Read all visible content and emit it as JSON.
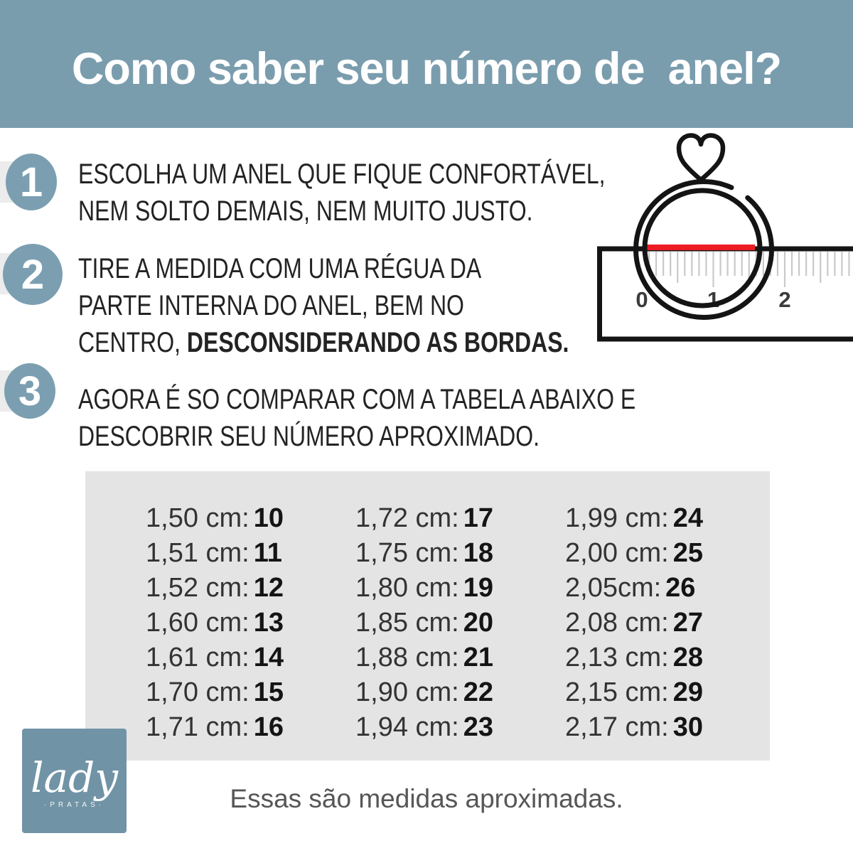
{
  "header": {
    "title": "Como saber seu número de  anel?"
  },
  "steps": [
    {
      "number": "1",
      "line1": "ESCOLHA UM ANEL QUE FIQUE CONFORTÁVEL,",
      "line2": "NEM SOLTO DEMAIS, NEM MUITO JUSTO."
    },
    {
      "number": "2",
      "line1": "TIRE A MEDIDA COM UMA RÉGUA DA",
      "line2": "PARTE INTERNA DO ANEL, BEM NO",
      "line3_regular": "CENTRO, ",
      "line3_bold": "DESCONSIDERANDO AS BORDAS."
    },
    {
      "number": "3",
      "line1": "AGORA É SO COMPARAR COM A TABELA ABAIXO E",
      "line2": "DESCOBRIR SEU NÚMERO APROXIMADO."
    }
  ],
  "ring_diagram": {
    "ruler_labels": [
      "0",
      "1",
      "2"
    ],
    "red_line_color": "#ed1c24",
    "outline_color": "#141414",
    "tick_color": "#c9c9c9"
  },
  "size_table": {
    "columns": [
      [
        {
          "label": "1,50 cm:",
          "size": "10"
        },
        {
          "label": "1,51 cm:",
          "size": "11"
        },
        {
          "label": "1,52 cm:",
          "size": "12"
        },
        {
          "label": "1,60 cm:",
          "size": "13"
        },
        {
          "label": "1,61 cm:",
          "size": "14"
        },
        {
          "label": "1,70 cm:",
          "size": "15"
        },
        {
          "label": "1,71 cm:",
          "size": "16"
        }
      ],
      [
        {
          "label": "1,72 cm:",
          "size": "17"
        },
        {
          "label": "1,75 cm:",
          "size": "18"
        },
        {
          "label": "1,80 cm:",
          "size": "19"
        },
        {
          "label": "1,85 cm:",
          "size": "20"
        },
        {
          "label": "1,88 cm:",
          "size": "21"
        },
        {
          "label": "1,90 cm:",
          "size": "22"
        },
        {
          "label": "1,94 cm:",
          "size": "23"
        }
      ],
      [
        {
          "label": "1,99 cm:",
          "size": "24"
        },
        {
          "label": "2,00 cm:",
          "size": "25"
        },
        {
          "label": "2,05cm:",
          "size": "26"
        },
        {
          "label": "2,08 cm:",
          "size": "27"
        },
        {
          "label": "2,13 cm:",
          "size": "28"
        },
        {
          "label": "2,15 cm:",
          "size": "29"
        },
        {
          "label": "2,17 cm:",
          "size": "30"
        }
      ]
    ]
  },
  "logo": {
    "name": "lady",
    "subtitle": "·PRATAS·"
  },
  "footer": {
    "note": "Essas são medidas aproximadas."
  },
  "colors": {
    "banner": "#7a9dae",
    "badge": "#7b9fb1",
    "table_bg": "#e4e4e4",
    "logo_bg": "#7193a6",
    "red_line": "#ed1c24"
  }
}
